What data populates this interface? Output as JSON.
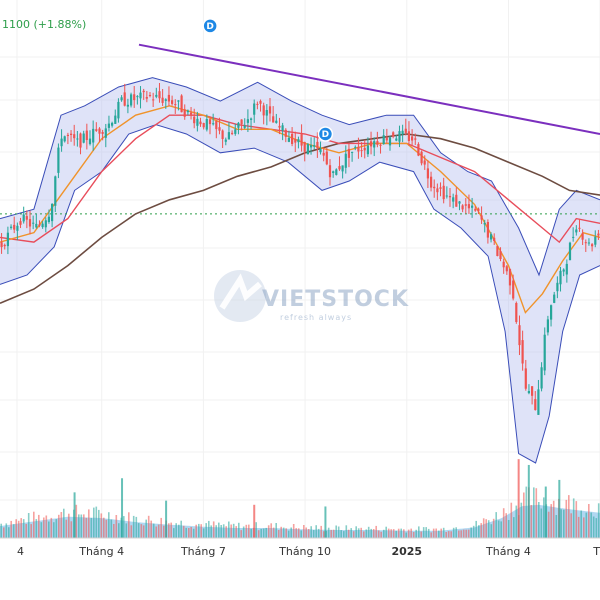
{
  "header": {
    "change_text": "1100 (+1.88%)"
  },
  "watermark": {
    "brand": "VIETSTOCK",
    "tagline": "refresh always"
  },
  "colors": {
    "up": "#26a69a",
    "down": "#ef5350",
    "ma_orange": "#f0932b",
    "ma_red": "#e84d5b",
    "ma_brown": "#6d4c41",
    "trendline": "#7b2fbe",
    "bollinger_fill": "#b8c0f0",
    "bollinger_line": "#3a4db8",
    "volume": "#6fb7e6",
    "reference_line": "#2e9e4a",
    "marker": "#1e88e5"
  },
  "chart_data": {
    "type": "candlestick",
    "title": "",
    "xlabel": "",
    "ylabel": "",
    "x_ticks": [
      {
        "label": "4",
        "x": 0.5
      },
      {
        "label": "Tháng 4",
        "x": 3
      },
      {
        "label": "Tháng 7",
        "x": 6
      },
      {
        "label": "Tháng 10",
        "x": 9
      },
      {
        "label": "2025",
        "x": 12,
        "bold": true
      },
      {
        "label": "Tháng 4",
        "x": 15
      },
      {
        "label": "T",
        "x": 17.7
      }
    ],
    "x_range": [
      0,
      17.7
    ],
    "y_range": [
      0,
      100
    ],
    "reference_level": 63,
    "price_path": [
      [
        0,
        56
      ],
      [
        0.6,
        62
      ],
      [
        1.1,
        60
      ],
      [
        1.5,
        64
      ],
      [
        1.8,
        80
      ],
      [
        2.3,
        78
      ],
      [
        2.7,
        80
      ],
      [
        3.2,
        82
      ],
      [
        3.6,
        87
      ],
      [
        4.4,
        88
      ],
      [
        5.1,
        87
      ],
      [
        5.6,
        84
      ],
      [
        6.1,
        82
      ],
      [
        6.7,
        79
      ],
      [
        7.3,
        83
      ],
      [
        7.6,
        87
      ],
      [
        8.1,
        82
      ],
      [
        8.8,
        78
      ],
      [
        9.5,
        76
      ],
      [
        9.8,
        71
      ],
      [
        10.3,
        76
      ],
      [
        10.9,
        78
      ],
      [
        11.6,
        80
      ],
      [
        12.2,
        79
      ],
      [
        12.7,
        70
      ],
      [
        13.3,
        66
      ],
      [
        14.1,
        63
      ],
      [
        14.6,
        56
      ],
      [
        15.1,
        48
      ],
      [
        15.5,
        26
      ],
      [
        15.8,
        22
      ],
      [
        16.2,
        43
      ],
      [
        16.7,
        53
      ],
      [
        17.0,
        61
      ],
      [
        17.4,
        56
      ],
      [
        17.7,
        60
      ]
    ],
    "ma_short": [
      [
        0,
        57
      ],
      [
        1,
        59
      ],
      [
        2,
        69
      ],
      [
        3,
        79
      ],
      [
        4,
        84
      ],
      [
        5,
        86
      ],
      [
        6,
        84
      ],
      [
        7,
        81
      ],
      [
        8,
        81
      ],
      [
        9,
        78
      ],
      [
        10,
        76
      ],
      [
        11,
        78
      ],
      [
        12,
        78
      ],
      [
        13,
        72
      ],
      [
        14,
        65
      ],
      [
        15,
        52
      ],
      [
        15.5,
        42
      ],
      [
        16,
        46
      ],
      [
        16.6,
        53
      ],
      [
        17.2,
        59
      ],
      [
        17.7,
        58
      ]
    ],
    "ma_medium": [
      [
        0,
        58
      ],
      [
        1,
        57
      ],
      [
        2,
        62
      ],
      [
        3,
        72
      ],
      [
        4,
        79
      ],
      [
        5,
        84
      ],
      [
        6,
        84
      ],
      [
        7,
        82
      ],
      [
        8,
        81
      ],
      [
        9,
        80
      ],
      [
        10,
        78
      ],
      [
        11,
        78
      ],
      [
        12,
        78
      ],
      [
        13,
        75
      ],
      [
        14,
        72
      ],
      [
        15,
        66
      ],
      [
        16,
        60
      ],
      [
        16.5,
        57
      ],
      [
        17,
        62
      ],
      [
        17.7,
        61
      ]
    ],
    "ma_long": [
      [
        0,
        44
      ],
      [
        1,
        47
      ],
      [
        2,
        52
      ],
      [
        3,
        58
      ],
      [
        4,
        63
      ],
      [
        5,
        66
      ],
      [
        6,
        68
      ],
      [
        7,
        71
      ],
      [
        8,
        73
      ],
      [
        9,
        76
      ],
      [
        10,
        78
      ],
      [
        11,
        79
      ],
      [
        12,
        80
      ],
      [
        13,
        79
      ],
      [
        14,
        77
      ],
      [
        15,
        74
      ],
      [
        16,
        71
      ],
      [
        16.8,
        68
      ],
      [
        17.7,
        67
      ]
    ],
    "bollinger_upper": [
      [
        0,
        62
      ],
      [
        1,
        64
      ],
      [
        1.8,
        84
      ],
      [
        2.5,
        86
      ],
      [
        3.5,
        90
      ],
      [
        4.5,
        92
      ],
      [
        5.5,
        90
      ],
      [
        6.5,
        87
      ],
      [
        7.6,
        91
      ],
      [
        8.6,
        87
      ],
      [
        9.5,
        84
      ],
      [
        10.3,
        82
      ],
      [
        11.4,
        84
      ],
      [
        12.2,
        84
      ],
      [
        13.0,
        76
      ],
      [
        13.8,
        72
      ],
      [
        14.5,
        70
      ],
      [
        15.3,
        60
      ],
      [
        15.9,
        50
      ],
      [
        16.5,
        64
      ],
      [
        17.0,
        68
      ],
      [
        17.7,
        66
      ]
    ],
    "bollinger_lower": [
      [
        0,
        48
      ],
      [
        0.8,
        50
      ],
      [
        1.6,
        56
      ],
      [
        2.2,
        68
      ],
      [
        3.0,
        72
      ],
      [
        3.8,
        80
      ],
      [
        4.6,
        82
      ],
      [
        5.5,
        80
      ],
      [
        6.5,
        76
      ],
      [
        7.5,
        77
      ],
      [
        8.5,
        74
      ],
      [
        9.5,
        68
      ],
      [
        10.3,
        70
      ],
      [
        11.2,
        74
      ],
      [
        12.2,
        72
      ],
      [
        12.8,
        64
      ],
      [
        13.6,
        60
      ],
      [
        14.4,
        54
      ],
      [
        14.9,
        38
      ],
      [
        15.3,
        12
      ],
      [
        15.8,
        10
      ],
      [
        16.2,
        20
      ],
      [
        16.6,
        38
      ],
      [
        17.1,
        50
      ],
      [
        17.7,
        52
      ]
    ],
    "trendline": [
      [
        4.1,
        99
      ],
      [
        17.7,
        80
      ]
    ],
    "markers": [
      {
        "label": "D",
        "x": 6.2,
        "y": 103
      },
      {
        "label": "D",
        "x": 9.6,
        "y": 80
      }
    ],
    "volume_range": [
      0,
      100
    ],
    "volume_profile": [
      [
        0,
        18
      ],
      [
        1,
        25
      ],
      [
        2,
        32
      ],
      [
        3,
        30
      ],
      [
        4,
        24
      ],
      [
        5,
        20
      ],
      [
        6,
        17
      ],
      [
        7,
        15
      ],
      [
        8,
        15
      ],
      [
        9,
        13
      ],
      [
        10,
        12
      ],
      [
        11,
        12
      ],
      [
        12,
        11
      ],
      [
        13,
        11
      ],
      [
        14,
        16
      ],
      [
        14.8,
        30
      ],
      [
        15.4,
        48
      ],
      [
        15.9,
        50
      ],
      [
        16.4,
        46
      ],
      [
        17,
        42
      ],
      [
        17.7,
        38
      ]
    ],
    "volume_spikes": [
      {
        "x": 2.2,
        "v": 55,
        "up": true
      },
      {
        "x": 3.6,
        "v": 72,
        "up": true
      },
      {
        "x": 4.9,
        "v": 45,
        "up": true
      },
      {
        "x": 7.5,
        "v": 40,
        "up": false
      },
      {
        "x": 9.6,
        "v": 38,
        "up": true
      },
      {
        "x": 15.3,
        "v": 95,
        "up": false
      },
      {
        "x": 15.6,
        "v": 88,
        "up": true
      },
      {
        "x": 16.1,
        "v": 62,
        "up": true
      },
      {
        "x": 16.5,
        "v": 70,
        "up": true
      }
    ]
  }
}
